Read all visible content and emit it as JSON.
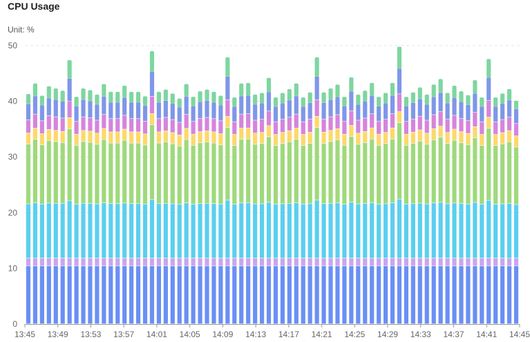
{
  "header": {
    "title": "CPU Usage",
    "unit_label": "Unit: %"
  },
  "chart_data": {
    "type": "bar",
    "stacked": true,
    "title": "CPU Usage",
    "unit": "Unit: %",
    "ylim": [
      0,
      50
    ],
    "yticks": [
      0,
      10,
      20,
      30,
      40,
      50
    ],
    "grid": true,
    "legend": "none",
    "x_tick_labels": [
      "13:45",
      "13:49",
      "13:53",
      "13:57",
      "14:01",
      "14:05",
      "14:09",
      "14:13",
      "14:17",
      "14:21",
      "14:25",
      "14:29",
      "14:33",
      "14:37",
      "14:41",
      "14:45"
    ],
    "colors": [
      "#6a8ff5",
      "#c9a5ee",
      "#5bcfef",
      "#9fd97c",
      "#fdd86a",
      "#d585db",
      "#7f97e8",
      "#7ed6a0"
    ],
    "totals": [
      41.3,
      43.2,
      41.0,
      42.7,
      42.3,
      41.9,
      47.4,
      40.8,
      42.3,
      42.0,
      41.2,
      43.1,
      41.7,
      41.7,
      42.8,
      41.7,
      41.7,
      40.9,
      49.0,
      41.7,
      42.1,
      41.4,
      40.5,
      43.1,
      40.8,
      41.8,
      42.1,
      41.7,
      41.0,
      47.9,
      40.7,
      43.2,
      43.3,
      41.2,
      41.5,
      44.2,
      40.7,
      41.5,
      42.2,
      43.2,
      40.7,
      41.6,
      47.9,
      41.6,
      42.3,
      43.0,
      40.8,
      44.3,
      41.2,
      41.9,
      43.3,
      40.8,
      41.5,
      43.3,
      49.8,
      40.8,
      41.6,
      42.5,
      41.2,
      43.0,
      44.0,
      41.5,
      42.8,
      41.8,
      41.1,
      43.8,
      40.7,
      47.6,
      40.7,
      41.4,
      42.2,
      40.1
    ]
  }
}
